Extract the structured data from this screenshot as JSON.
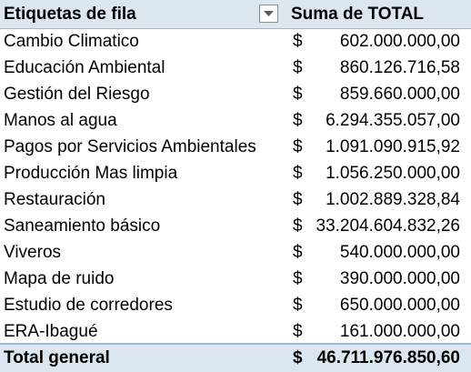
{
  "header": {
    "row_label": "Etiquetas de fila",
    "value_label": "Suma de TOTAL",
    "filter_icon": "dropdown-arrow-icon"
  },
  "rows": [
    {
      "label": "Cambio Climatico",
      "currency": "$",
      "value": "602.000.000,00"
    },
    {
      "label": "Educación Ambiental",
      "currency": "$",
      "value": "860.126.716,58"
    },
    {
      "label": "Gestión del Riesgo",
      "currency": "$",
      "value": "859.660.000,00"
    },
    {
      "label": "Manos al agua",
      "currency": "$",
      "value": "6.294.355.057,00"
    },
    {
      "label": "Pagos por Servicios Ambientales",
      "currency": "$",
      "value": "1.091.090.915,92"
    },
    {
      "label": "Producción Mas limpia",
      "currency": "$",
      "value": "1.056.250.000,00"
    },
    {
      "label": "Restauración",
      "currency": "$",
      "value": "1.002.889.328,84"
    },
    {
      "label": "Saneamiento básico",
      "currency": "$",
      "value": "33.204.604.832,26"
    },
    {
      "label": "Viveros",
      "currency": "$",
      "value": "540.000.000,00"
    },
    {
      "label": "Mapa de ruido",
      "currency": "$",
      "value": "390.000.000,00"
    },
    {
      "label": "Estudio de corredores",
      "currency": "$",
      "value": "650.000.000,00"
    },
    {
      "label": "ERA-Ibagué",
      "currency": "$",
      "value": "161.000.000,00"
    }
  ],
  "total": {
    "label": "Total general",
    "currency": "$",
    "value": "46.711.976.850,60"
  },
  "colors": {
    "header_bg": "#dce6f1",
    "border": "#9bb7d9"
  }
}
